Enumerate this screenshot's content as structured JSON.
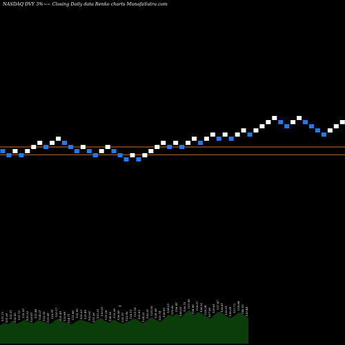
{
  "header": {
    "title": "NASDAQ DVY 3%~~ Closing Daily data Renko charts MunafaSutra.com"
  },
  "colors": {
    "background": "#000000",
    "up_brick": "#ffffff",
    "down_brick": "#1e7cf0",
    "reference_line": "#c0702a",
    "volume_fill": "#0b3d0b"
  },
  "chart_data": [
    {
      "type": "renko",
      "title": "NASDAQ DVY 3%~~ Closing Daily data Renko charts MunafaSutra.com",
      "bricks": [
        {
          "level": 0,
          "dir": "down"
        },
        {
          "level": -1,
          "dir": "down"
        },
        {
          "level": 0,
          "dir": "up"
        },
        {
          "level": -1,
          "dir": "down"
        },
        {
          "level": 0,
          "dir": "up"
        },
        {
          "level": 1,
          "dir": "up"
        },
        {
          "level": 2,
          "dir": "up"
        },
        {
          "level": 1,
          "dir": "down"
        },
        {
          "level": 2,
          "dir": "up"
        },
        {
          "level": 3,
          "dir": "up"
        },
        {
          "level": 2,
          "dir": "down"
        },
        {
          "level": 1,
          "dir": "down"
        },
        {
          "level": 0,
          "dir": "down"
        },
        {
          "level": 1,
          "dir": "up"
        },
        {
          "level": 0,
          "dir": "down"
        },
        {
          "level": -1,
          "dir": "down"
        },
        {
          "level": 0,
          "dir": "up"
        },
        {
          "level": 1,
          "dir": "up"
        },
        {
          "level": 0,
          "dir": "down"
        },
        {
          "level": -1,
          "dir": "down"
        },
        {
          "level": -2,
          "dir": "down"
        },
        {
          "level": -1,
          "dir": "up"
        },
        {
          "level": -2,
          "dir": "down"
        },
        {
          "level": -1,
          "dir": "up"
        },
        {
          "level": 0,
          "dir": "up"
        },
        {
          "level": 1,
          "dir": "up"
        },
        {
          "level": 2,
          "dir": "up"
        },
        {
          "level": 1,
          "dir": "down"
        },
        {
          "level": 2,
          "dir": "up"
        },
        {
          "level": 1,
          "dir": "down"
        },
        {
          "level": 2,
          "dir": "up"
        },
        {
          "level": 3,
          "dir": "up"
        },
        {
          "level": 2,
          "dir": "down"
        },
        {
          "level": 3,
          "dir": "up"
        },
        {
          "level": 4,
          "dir": "up"
        },
        {
          "level": 3,
          "dir": "down"
        },
        {
          "level": 4,
          "dir": "up"
        },
        {
          "level": 3,
          "dir": "down"
        },
        {
          "level": 4,
          "dir": "up"
        },
        {
          "level": 5,
          "dir": "up"
        },
        {
          "level": 4,
          "dir": "down"
        },
        {
          "level": 5,
          "dir": "up"
        },
        {
          "level": 6,
          "dir": "up"
        },
        {
          "level": 7,
          "dir": "up"
        },
        {
          "level": 8,
          "dir": "up"
        },
        {
          "level": 7,
          "dir": "down"
        },
        {
          "level": 6,
          "dir": "down"
        },
        {
          "level": 7,
          "dir": "up"
        },
        {
          "level": 8,
          "dir": "up"
        },
        {
          "level": 7,
          "dir": "down"
        },
        {
          "level": 6,
          "dir": "down"
        },
        {
          "level": 5,
          "dir": "down"
        },
        {
          "level": 4,
          "dir": "down"
        },
        {
          "level": 5,
          "dir": "up"
        },
        {
          "level": 6,
          "dir": "up"
        },
        {
          "level": 7,
          "dir": "up"
        },
        {
          "level": 6,
          "dir": "down"
        },
        {
          "level": 7,
          "dir": "up"
        },
        {
          "level": 8,
          "dir": "up"
        }
      ],
      "reference_lines": [
        0.5,
        -0.2
      ],
      "volume_panel": {
        "labels": [
          "131.73",
          "131.90",
          "132.51",
          "130.43",
          "131.73",
          "132.05",
          "130.52",
          "130.87",
          "131.46",
          "134.21",
          "132.53",
          "131.41",
          "133.91",
          "130.17",
          "131.49",
          "133.68",
          "134.71",
          "131.89",
          "132.90",
          "133.33",
          "131.49",
          "133.61",
          "131.26",
          "133.35",
          "132.03",
          "131.06",
          "134.56",
          "133.38",
          "136.38",
          "135.10",
          "133.93",
          "136.11",
          "135.16",
          "133.65",
          "134.32",
          "136.31",
          "135.50",
          "136.08",
          "135.74",
          "136.90",
          "134.25",
          "135.43",
          "136.41",
          "138.02",
          "136.75",
          "137.49",
          "138.66",
          "136.07",
          "138.52",
          "139.24",
          "137.06",
          "139.81",
          "137.87",
          "138.47",
          "139.01",
          "138.09",
          "137.73",
          "139.64",
          "140.05",
          "139.44"
        ],
        "volumes": [
          0.44,
          0.5,
          0.47,
          0.55,
          0.48,
          0.53,
          0.58,
          0.52,
          0.49,
          0.57,
          0.54,
          0.51,
          0.48,
          0.56,
          0.6,
          0.52,
          0.5,
          0.46,
          0.53,
          0.58,
          0.55,
          0.52,
          0.48,
          0.57,
          0.62,
          0.54,
          0.5,
          0.58,
          0.53,
          0.48,
          0.51,
          0.56,
          0.61,
          0.55,
          0.49,
          0.57,
          0.64,
          0.58,
          0.52,
          0.6,
          0.7,
          0.66,
          0.73,
          0.62,
          0.74,
          0.81,
          0.68,
          0.76,
          0.72,
          0.66,
          0.6,
          0.7,
          0.78,
          0.72,
          0.65,
          0.62,
          0.7,
          0.76,
          0.68,
          0.62
        ],
        "marker": "**"
      }
    }
  ]
}
